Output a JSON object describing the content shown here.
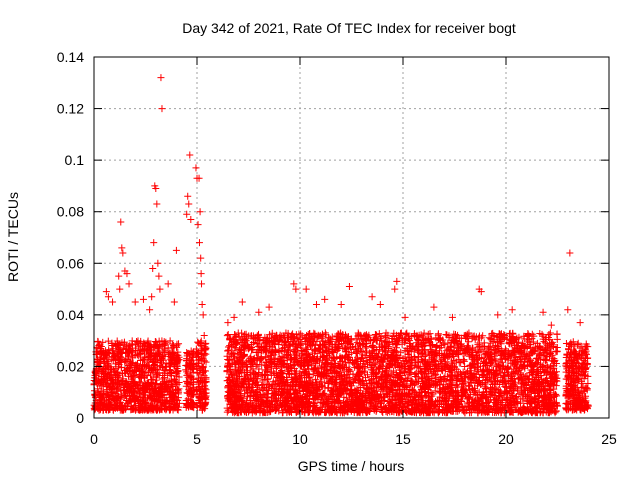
{
  "chart_data": {
    "type": "scatter",
    "title": "Day 342 of 2021, Rate Of TEC Index for receiver bogt",
    "xlabel": "GPS time / hours",
    "ylabel": "ROTI / TECUs",
    "xlim": [
      0,
      25
    ],
    "ylim": [
      0,
      0.14
    ],
    "x_ticks": [
      "0",
      "5",
      "10",
      "15",
      "20",
      "25"
    ],
    "y_ticks": [
      "0",
      "0.02",
      "0.04",
      "0.06",
      "0.08",
      "0.1",
      "0.12",
      "0.14"
    ],
    "grid": true,
    "marker": "+",
    "color": "#ff0000",
    "series": [
      {
        "points": [
          [
            3.25,
            0.132
          ],
          [
            3.3,
            0.12
          ],
          [
            2.95,
            0.09
          ],
          [
            3.0,
            0.089
          ],
          [
            3.05,
            0.083
          ],
          [
            2.9,
            0.068
          ],
          [
            3.1,
            0.06
          ],
          [
            3.15,
            0.055
          ],
          [
            2.85,
            0.058
          ],
          [
            3.2,
            0.05
          ],
          [
            1.3,
            0.076
          ],
          [
            1.35,
            0.066
          ],
          [
            1.4,
            0.064
          ],
          [
            1.5,
            0.057
          ],
          [
            1.6,
            0.056
          ],
          [
            1.7,
            0.052
          ],
          [
            1.2,
            0.055
          ],
          [
            1.25,
            0.05
          ],
          [
            0.6,
            0.049
          ],
          [
            0.7,
            0.047
          ],
          [
            0.9,
            0.045
          ],
          [
            2.0,
            0.045
          ],
          [
            2.4,
            0.046
          ],
          [
            3.6,
            0.052
          ],
          [
            3.9,
            0.045
          ],
          [
            4.0,
            0.065
          ],
          [
            2.8,
            0.047
          ],
          [
            2.7,
            0.042
          ],
          [
            4.65,
            0.102
          ],
          [
            4.55,
            0.086
          ],
          [
            4.6,
            0.083
          ],
          [
            4.5,
            0.079
          ],
          [
            4.7,
            0.077
          ],
          [
            4.95,
            0.097
          ],
          [
            5.0,
            0.093
          ],
          [
            5.1,
            0.093
          ],
          [
            5.15,
            0.08
          ],
          [
            5.05,
            0.075
          ],
          [
            5.12,
            0.068
          ],
          [
            5.18,
            0.062
          ],
          [
            5.2,
            0.056
          ],
          [
            5.22,
            0.052
          ],
          [
            5.25,
            0.044
          ],
          [
            5.3,
            0.04
          ],
          [
            5.35,
            0.032
          ],
          [
            23.1,
            0.064
          ],
          [
            23.0,
            0.042
          ],
          [
            14.7,
            0.053
          ],
          [
            14.6,
            0.05
          ],
          [
            18.7,
            0.05
          ],
          [
            18.8,
            0.049
          ],
          [
            9.7,
            0.052
          ],
          [
            9.8,
            0.05
          ],
          [
            12.4,
            0.051
          ],
          [
            10.3,
            0.05
          ],
          [
            13.5,
            0.047
          ],
          [
            7.2,
            0.045
          ],
          [
            8.5,
            0.043
          ],
          [
            11.2,
            0.046
          ],
          [
            12.0,
            0.044
          ],
          [
            16.5,
            0.043
          ],
          [
            21.8,
            0.041
          ],
          [
            20.3,
            0.042
          ],
          [
            19.6,
            0.04
          ],
          [
            13.9,
            0.044
          ],
          [
            15.1,
            0.039
          ],
          [
            17.4,
            0.039
          ],
          [
            22.2,
            0.036
          ],
          [
            23.6,
            0.037
          ],
          [
            6.5,
            0.037
          ],
          [
            6.8,
            0.039
          ],
          [
            8.0,
            0.041
          ],
          [
            10.8,
            0.044
          ]
        ]
      }
    ],
    "dense_band": {
      "segments": [
        {
          "x_range": [
            0,
            4.15
          ],
          "y_range": [
            0.003,
            0.03
          ]
        },
        {
          "x_range": [
            4.45,
            4.85
          ],
          "y_range": [
            0.004,
            0.026
          ]
        },
        {
          "x_range": [
            4.95,
            5.45
          ],
          "y_range": [
            0.003,
            0.03
          ]
        },
        {
          "x_range": [
            6.45,
            22.5
          ],
          "y_range": [
            0.002,
            0.033
          ]
        },
        {
          "x_range": [
            22.9,
            24.0
          ],
          "y_range": [
            0.003,
            0.03
          ]
        }
      ]
    }
  }
}
